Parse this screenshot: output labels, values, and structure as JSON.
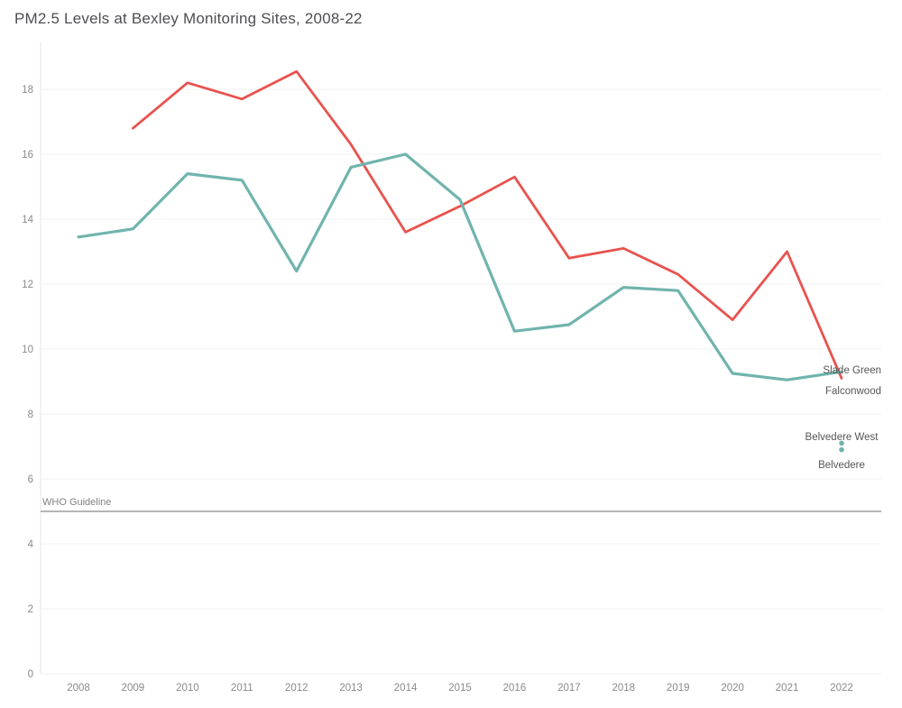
{
  "window": {
    "title": "PM2.5 Levels at Bexley Monitoring Sites, 2008-22"
  },
  "chart_data": {
    "type": "line",
    "title": "PM2.5 Levels at Bexley Monitoring Sites, 2008-22",
    "xlabel": "",
    "ylabel": "",
    "x_ticks": [
      2008,
      2009,
      2010,
      2011,
      2012,
      2013,
      2014,
      2015,
      2016,
      2017,
      2018,
      2019,
      2020,
      2021,
      2022
    ],
    "y_ticks": [
      0,
      2,
      4,
      6,
      8,
      10,
      12,
      14,
      16,
      18
    ],
    "y_range": [
      0,
      19.2
    ],
    "grid": "horizontal-only",
    "legend": "labels-at-line-ends",
    "series": [
      {
        "name": "Slade Green",
        "type": "line",
        "color": "#e8534e",
        "stroke_width": 2.8,
        "x": [
          2009,
          2010,
          2011,
          2012,
          2013,
          2014,
          2015,
          2016,
          2017,
          2018,
          2019,
          2020,
          2021,
          2022
        ],
        "values": [
          16.8,
          18.2,
          17.7,
          18.55,
          16.3,
          13.6,
          14.4,
          15.3,
          12.8,
          13.1,
          12.3,
          10.9,
          13.0,
          9.1
        ]
      },
      {
        "name": "Falconwood",
        "type": "line",
        "color": "#70b4ad",
        "stroke_width": 3.2,
        "x": [
          2008,
          2009,
          2010,
          2011,
          2012,
          2013,
          2014,
          2015,
          2016,
          2017,
          2018,
          2019,
          2020,
          2021,
          2022
        ],
        "values": [
          13.45,
          13.7,
          15.4,
          15.2,
          12.4,
          15.6,
          16.0,
          14.6,
          10.55,
          10.75,
          11.9,
          11.8,
          9.25,
          9.05,
          9.3
        ]
      },
      {
        "name": "Belvedere West",
        "type": "point",
        "color": "#70b4ad",
        "x": [
          2022
        ],
        "values": [
          7.1
        ]
      },
      {
        "name": "Belvedere",
        "type": "point",
        "color": "#70b4ad",
        "x": [
          2022
        ],
        "values": [
          6.9
        ]
      }
    ],
    "reference_line": {
      "label": "WHO Guideline",
      "value": 5,
      "color": "#b5b5b5"
    },
    "end_labels": [
      {
        "text": "Slade Green",
        "value": 9.36,
        "align": "end"
      },
      {
        "text": "Falconwood",
        "value": 8.72,
        "align": "end"
      },
      {
        "text": "Belvedere West",
        "value": 7.31,
        "align": "middle"
      },
      {
        "text": "Belvedere",
        "value": 6.44,
        "align": "middle"
      }
    ],
    "style": {
      "red": "#e8534e",
      "teal": "#70b4ad",
      "gridline": "#f0f0f0",
      "axis_line": "#e4e4e4",
      "tick_text": "#8a8a8a",
      "end_label_text": "#565656",
      "reference_line": "#b5b5b5",
      "title_text": "#4e4e52",
      "background": "#ffffff"
    }
  }
}
